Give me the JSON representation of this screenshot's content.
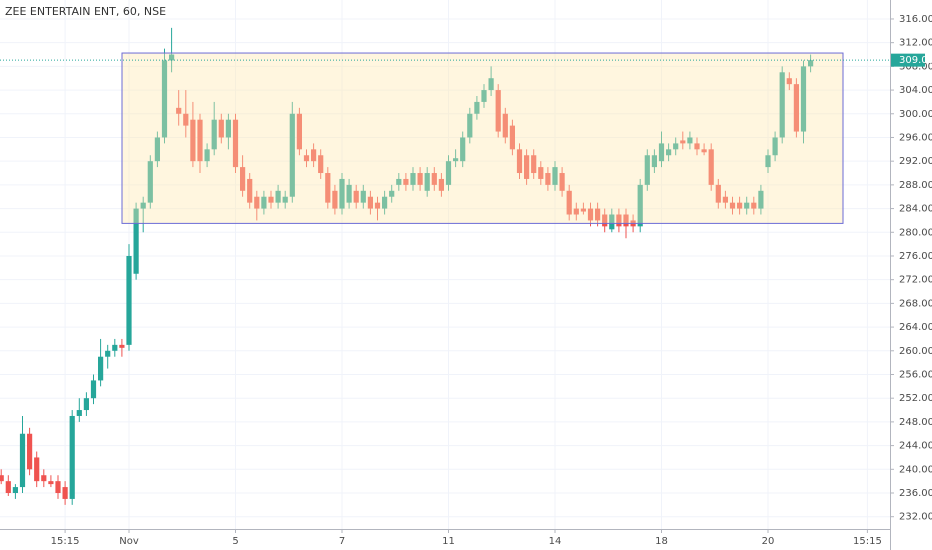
{
  "chart_data": {
    "type": "candlestick",
    "title": "ZEE ENTERTAIN ENT, 60, NSE",
    "categories": [
      null,
      null,
      null,
      null,
      null,
      null,
      null,
      null,
      null,
      "15:15",
      null,
      null,
      null,
      null,
      null,
      null,
      null,
      null,
      "Nov",
      null,
      null,
      null,
      null,
      null,
      null,
      null,
      null,
      null,
      null,
      null,
      null,
      null,
      null,
      "5",
      null,
      null,
      null,
      null,
      null,
      null,
      null,
      null,
      null,
      null,
      null,
      null,
      null,
      null,
      "7",
      null,
      null,
      null,
      null,
      null,
      null,
      null,
      null,
      null,
      null,
      null,
      null,
      null,
      null,
      "11",
      null,
      null,
      null,
      null,
      null,
      null,
      null,
      null,
      null,
      null,
      null,
      null,
      null,
      null,
      "14",
      null,
      null,
      null,
      null,
      null,
      null,
      null,
      null,
      null,
      null,
      null,
      null,
      null,
      null,
      "18",
      null,
      null,
      null,
      null,
      null,
      null,
      null,
      null,
      null,
      null,
      null,
      null,
      null,
      null,
      "20",
      null,
      null,
      null,
      null,
      null,
      null,
      null,
      null,
      null,
      null,
      null,
      null,
      null,
      "15:15"
    ],
    "open": [
      239,
      238,
      236,
      237,
      246,
      242,
      239,
      238,
      238,
      237,
      235,
      249,
      250,
      252,
      255,
      259,
      260,
      261,
      261,
      273,
      284,
      285,
      292,
      296,
      309,
      301,
      300,
      299,
      299,
      292,
      294,
      299,
      296,
      299,
      291,
      289,
      286,
      284,
      286,
      285,
      285,
      286,
      300,
      293,
      294,
      293,
      290,
      287,
      284,
      285,
      287,
      285,
      286,
      285,
      284,
      286,
      288,
      289,
      288,
      290,
      287,
      290,
      289,
      288,
      292,
      292,
      296,
      300,
      302,
      304,
      304,
      300,
      298,
      294,
      293,
      293,
      291,
      290,
      288,
      290,
      287,
      284,
      284,
      284,
      284,
      283,
      280.5,
      283,
      283,
      282,
      281,
      288,
      291,
      292,
      293,
      294,
      295.5,
      295,
      295,
      294,
      294,
      288,
      286,
      285,
      285,
      284,
      285,
      284,
      291,
      293,
      296,
      306,
      305,
      297,
      308,
      null,
      null,
      null,
      null,
      null,
      null,
      null,
      null
    ],
    "high": [
      240,
      239,
      237.5,
      249,
      247,
      243,
      240,
      239,
      239,
      238,
      250,
      252,
      253,
      256,
      262,
      261,
      262,
      262,
      278,
      285,
      286,
      293,
      297,
      311,
      314.5,
      304,
      304,
      302,
      300,
      295,
      302,
      300,
      300,
      300,
      293,
      290,
      287,
      287,
      287,
      288,
      287,
      302,
      301,
      294,
      295,
      294,
      291,
      288,
      290,
      289,
      288,
      288,
      287,
      286,
      287,
      288,
      290,
      290,
      291,
      291,
      291,
      291,
      290,
      293,
      294,
      297,
      301,
      303,
      305,
      308,
      305,
      301,
      299,
      295,
      294,
      294,
      292,
      291,
      292,
      291,
      288,
      285,
      285,
      285,
      285,
      284,
      284,
      284,
      284,
      283,
      289,
      294,
      294,
      297,
      295,
      296,
      297,
      297,
      296,
      295,
      295,
      289,
      287,
      286,
      286,
      286,
      286,
      288,
      294,
      297,
      308,
      307,
      306,
      309,
      310,
      null,
      null,
      null,
      null,
      null,
      null,
      null,
      null
    ],
    "low": [
      237.5,
      235.5,
      235,
      236,
      239,
      237,
      237,
      237,
      235,
      234,
      234,
      248,
      249,
      251,
      254,
      257,
      259,
      259,
      260,
      272,
      280,
      284,
      291,
      295,
      307,
      298,
      296,
      291,
      290,
      291,
      293,
      295,
      294,
      290,
      286,
      284,
      282,
      283,
      284,
      284,
      284,
      285,
      293,
      291,
      291,
      289,
      284,
      283,
      283,
      284,
      284,
      284,
      283,
      282,
      283,
      285,
      287,
      287,
      287,
      287,
      286,
      287,
      286,
      287,
      291,
      291,
      295,
      299,
      301,
      303,
      296,
      295,
      293,
      289,
      288,
      289,
      288,
      287,
      287,
      286,
      282,
      282,
      283,
      281,
      281,
      280,
      280,
      280,
      279,
      280,
      280,
      287,
      290,
      291,
      292,
      293,
      294,
      294,
      293,
      293,
      287,
      284,
      284,
      283,
      283,
      283,
      283,
      283,
      290,
      292,
      295,
      304,
      296,
      295,
      307,
      null,
      null,
      null,
      null,
      null,
      null,
      null,
      null
    ],
    "close": [
      238,
      236,
      237,
      246,
      240,
      238,
      238,
      237.5,
      236,
      235,
      249,
      250,
      252,
      255,
      259,
      260,
      261,
      260.5,
      276,
      284,
      285,
      292,
      296,
      309,
      310,
      300,
      298,
      292,
      292,
      294,
      299,
      296,
      299,
      291,
      287,
      285,
      284,
      286,
      285,
      287,
      286,
      300,
      294,
      292,
      292,
      290,
      285,
      284,
      289,
      288,
      285,
      287,
      284,
      284,
      286,
      287,
      289,
      288,
      290,
      288,
      290,
      288,
      287,
      292,
      292.5,
      296,
      300,
      302,
      304,
      306,
      297,
      296,
      294,
      290,
      289,
      290,
      289,
      288,
      291,
      287,
      283,
      283,
      283.5,
      282,
      282,
      281,
      283,
      281,
      281,
      281,
      288,
      293,
      293,
      295,
      294,
      295,
      295,
      296,
      294,
      293.5,
      288,
      285,
      285,
      284,
      284,
      285,
      284,
      287,
      293,
      296,
      307,
      305,
      297,
      308,
      309.05,
      null,
      null,
      null,
      null,
      null,
      null,
      null,
      null
    ],
    "up_color": "#26a69a",
    "down_color": "#ef5350",
    "ylim": [
      230.6,
      319.2
    ],
    "yticks": [
      {
        "value": 232,
        "label": "232.00"
      },
      {
        "value": 236,
        "label": "236.00"
      },
      {
        "value": 240,
        "label": "240.00"
      },
      {
        "value": 244,
        "label": "244.00"
      },
      {
        "value": 248,
        "label": "248.00"
      },
      {
        "value": 252,
        "label": "252.00"
      },
      {
        "value": 256,
        "label": "256.00"
      },
      {
        "value": 260,
        "label": "260.00"
      },
      {
        "value": 264,
        "label": "264.00"
      },
      {
        "value": 268,
        "label": "268.00"
      },
      {
        "value": 272,
        "label": "272.00"
      },
      {
        "value": 276,
        "label": "276.00"
      },
      {
        "value": 280,
        "label": "280.00"
      },
      {
        "value": 284,
        "label": "284.00"
      },
      {
        "value": 288,
        "label": "288.00"
      },
      {
        "value": 292,
        "label": "292.00"
      },
      {
        "value": 296,
        "label": "296.00"
      },
      {
        "value": 300,
        "label": "300.00"
      },
      {
        "value": 304,
        "label": "304.00"
      },
      {
        "value": 308,
        "label": "308.00"
      },
      {
        "value": 312,
        "label": "312.00"
      },
      {
        "value": 316,
        "label": "316.00"
      }
    ],
    "grid": true,
    "last_price": 309.05,
    "range_box": {
      "top": 310.25,
      "bottom": 281.5,
      "color": "#6b6bd6",
      "fill": "#ffe9b0"
    }
  }
}
